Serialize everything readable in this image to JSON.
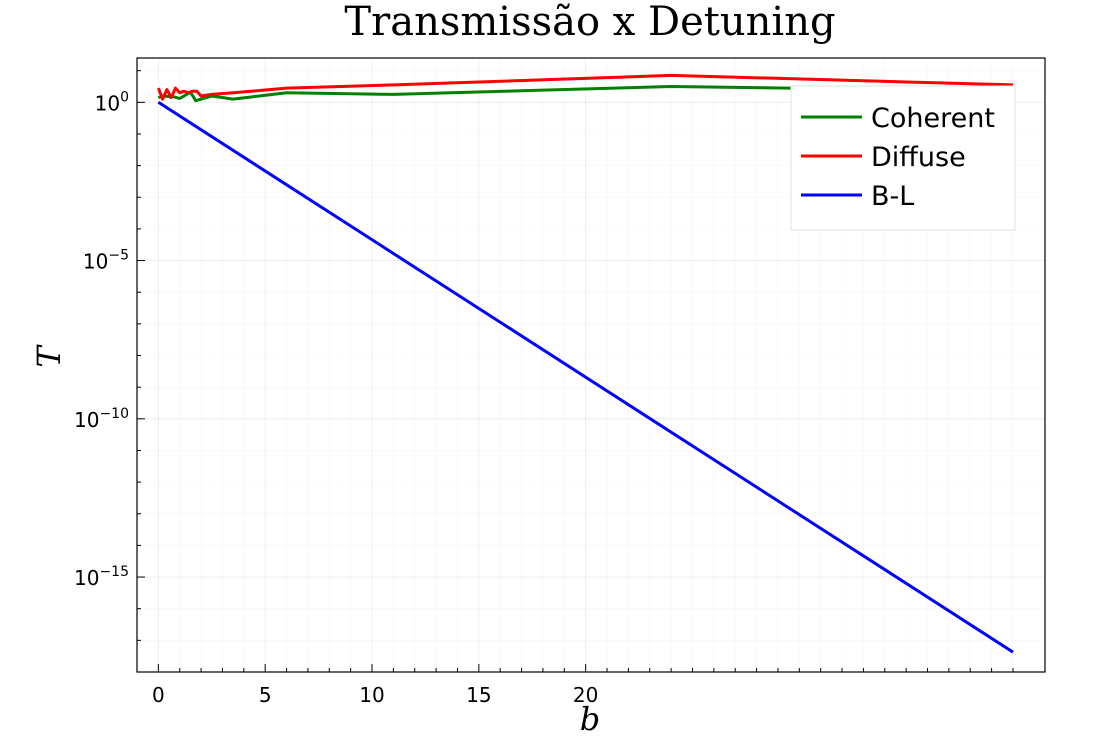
{
  "chart_data": {
    "type": "line",
    "title": "Transmissão x Detuning",
    "xlabel": "b",
    "ylabel": "T",
    "yscale": "log10",
    "xlim": [
      -1,
      41.5
    ],
    "ylim_log10": [
      -18.0,
      1.4
    ],
    "xticks": [
      0,
      5,
      10,
      15,
      20
    ],
    "xtick_labels": [
      "0",
      "5",
      "10",
      "15",
      "20"
    ],
    "yticks_log10": [
      0,
      -5,
      -10,
      -15
    ],
    "ytick_labels": [
      {
        "base": "10",
        "exp": "0"
      },
      {
        "base": "10",
        "exp": "−5"
      },
      {
        "base": "10",
        "exp": "−10"
      },
      {
        "base": "10",
        "exp": "−15"
      }
    ],
    "grid": true,
    "legend_position": "top-right",
    "series": [
      {
        "name": "Coherent",
        "color": "#008000",
        "x": [
          0,
          0.25,
          0.5,
          0.75,
          1.0,
          1.25,
          1.5,
          1.75,
          2.0,
          2.5,
          3.5,
          6,
          11,
          24,
          40
        ],
        "y_log10": [
          0.15,
          0.2,
          0.18,
          0.17,
          0.12,
          0.22,
          0.32,
          0.05,
          0.1,
          0.2,
          0.1,
          0.3,
          0.25,
          0.5,
          0.35
        ]
      },
      {
        "name": "Diffuse",
        "color": "#ff0000",
        "x": [
          0,
          0.2,
          0.4,
          0.6,
          0.8,
          1.0,
          1.2,
          1.4,
          1.6,
          1.8,
          2.0,
          2.5,
          3.5,
          6,
          11,
          24,
          40
        ],
        "y_log10": [
          0.45,
          0.1,
          0.4,
          0.15,
          0.45,
          0.3,
          0.35,
          0.3,
          0.35,
          0.35,
          0.2,
          0.25,
          0.3,
          0.45,
          0.55,
          0.85,
          0.55
        ]
      },
      {
        "name": "B-L",
        "color": "#0000ff",
        "x": [
          0,
          40
        ],
        "y_log10": [
          0,
          -17.37
        ]
      }
    ]
  }
}
